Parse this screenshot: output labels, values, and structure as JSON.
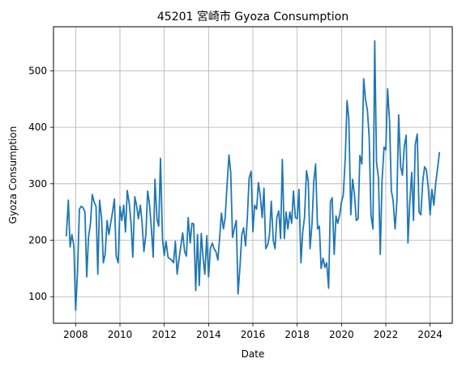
{
  "chart_data": {
    "type": "line",
    "title": "45201 宮崎市 Gyoza Consumption",
    "xlabel": "Date",
    "ylabel": "Gyoza Consumption",
    "x_range": [
      2007.0,
      2025.0
    ],
    "ylim": [
      53,
      578
    ],
    "x_ticks": [
      2008,
      2010,
      2012,
      2014,
      2016,
      2018,
      2020,
      2022,
      2024
    ],
    "y_ticks": [
      100,
      200,
      300,
      400,
      500
    ],
    "grid": true,
    "line_color": "#1f77b4",
    "series": [
      {
        "x": [
          2007.58,
          2007.67,
          2007.75,
          2007.83,
          2007.92,
          2008.0,
          2008.08,
          2008.17,
          2008.25,
          2008.33,
          2008.42,
          2008.5,
          2008.58,
          2008.67,
          2008.75,
          2008.83,
          2008.92,
          2009.0,
          2009.08,
          2009.17,
          2009.25,
          2009.33,
          2009.42,
          2009.5,
          2009.58,
          2009.67,
          2009.75,
          2009.83,
          2009.92,
          2010.0,
          2010.08,
          2010.17,
          2010.25,
          2010.33,
          2010.42,
          2010.5,
          2010.58,
          2010.67,
          2010.75,
          2010.83,
          2010.92,
          2011.0,
          2011.08,
          2011.17,
          2011.25,
          2011.33,
          2011.42,
          2011.5,
          2011.58,
          2011.67,
          2011.75,
          2011.83,
          2011.92,
          2012.0,
          2012.08,
          2012.17,
          2012.25,
          2012.33,
          2012.42,
          2012.5,
          2012.58,
          2012.67,
          2012.75,
          2012.83,
          2012.92,
          2013.0,
          2013.08,
          2013.17,
          2013.25,
          2013.33,
          2013.42,
          2013.5,
          2013.58,
          2013.67,
          2013.75,
          2013.83,
          2013.92,
          2014.0,
          2014.08,
          2014.17,
          2014.25,
          2014.33,
          2014.42,
          2014.5,
          2014.58,
          2014.67,
          2014.75,
          2014.83,
          2014.92,
          2015.0,
          2015.08,
          2015.17,
          2015.25,
          2015.33,
          2015.42,
          2015.5,
          2015.58,
          2015.67,
          2015.75,
          2015.83,
          2015.92,
          2016.0,
          2016.08,
          2016.17,
          2016.25,
          2016.33,
          2016.42,
          2016.5,
          2016.58,
          2016.67,
          2016.75,
          2016.83,
          2016.92,
          2017.0,
          2017.08,
          2017.17,
          2017.25,
          2017.33,
          2017.42,
          2017.5,
          2017.58,
          2017.67,
          2017.75,
          2017.83,
          2017.92,
          2018.0,
          2018.08,
          2018.17,
          2018.25,
          2018.33,
          2018.42,
          2018.5,
          2018.58,
          2018.67,
          2018.75,
          2018.83,
          2018.92,
          2019.0,
          2019.08,
          2019.17,
          2019.25,
          2019.33,
          2019.42,
          2019.5,
          2019.58,
          2019.67,
          2019.75,
          2019.83,
          2019.92,
          2020.0,
          2020.08,
          2020.17,
          2020.25,
          2020.33,
          2020.42,
          2020.5,
          2020.58,
          2020.67,
          2020.75,
          2020.83,
          2020.92,
          2021.0,
          2021.08,
          2021.17,
          2021.25,
          2021.33,
          2021.42,
          2021.5,
          2021.58,
          2021.67,
          2021.75,
          2021.83,
          2021.92,
          2022.0,
          2022.08,
          2022.17,
          2022.25,
          2022.33,
          2022.42,
          2022.5,
          2022.58,
          2022.67,
          2022.75,
          2022.83,
          2022.92,
          2023.0,
          2023.08,
          2023.17,
          2023.25,
          2023.33,
          2023.42,
          2023.5,
          2023.58,
          2023.67,
          2023.75,
          2023.83,
          2023.92,
          2024.0,
          2024.08,
          2024.17,
          2024.25,
          2024.33,
          2024.42
        ],
        "values": [
          208,
          271,
          188,
          210,
          190,
          76,
          140,
          255,
          260,
          258,
          250,
          135,
          205,
          230,
          281,
          268,
          260,
          140,
          271,
          240,
          160,
          175,
          235,
          210,
          230,
          251,
          273,
          172,
          160,
          260,
          235,
          262,
          215,
          288,
          265,
          230,
          170,
          277,
          262,
          238,
          262,
          230,
          180,
          210,
          287,
          265,
          220,
          170,
          308,
          237,
          225,
          345,
          201,
          173,
          198,
          170,
          167,
          165,
          160,
          198,
          140,
          168,
          190,
          213,
          180,
          172,
          240,
          195,
          230,
          229,
          111,
          210,
          120,
          212,
          170,
          140,
          208,
          135,
          185,
          195,
          185,
          180,
          165,
          205,
          248,
          220,
          240,
          295,
          351,
          320,
          205,
          222,
          235,
          105,
          155,
          210,
          222,
          190,
          240,
          310,
          322,
          215,
          262,
          255,
          302,
          280,
          240,
          292,
          185,
          192,
          210,
          269,
          200,
          185,
          240,
          252,
          203,
          343,
          203,
          250,
          220,
          250,
          230,
          287,
          240,
          238,
          290,
          160,
          215,
          240,
          323,
          305,
          185,
          230,
          305,
          335,
          220,
          225,
          150,
          168,
          152,
          160,
          115,
          268,
          275,
          175,
          243,
          230,
          245,
          268,
          280,
          345,
          447,
          415,
          245,
          308,
          283,
          235,
          238,
          350,
          335,
          486,
          450,
          430,
          382,
          245,
          220,
          553,
          338,
          310,
          175,
          305,
          365,
          360,
          468,
          410,
          288,
          270,
          220,
          270,
          422,
          330,
          315,
          365,
          386,
          195,
          265,
          320,
          235,
          370,
          388,
          250,
          245,
          305,
          330,
          325,
          292,
          245,
          290,
          262,
          300,
          325,
          355
        ]
      }
    ]
  }
}
